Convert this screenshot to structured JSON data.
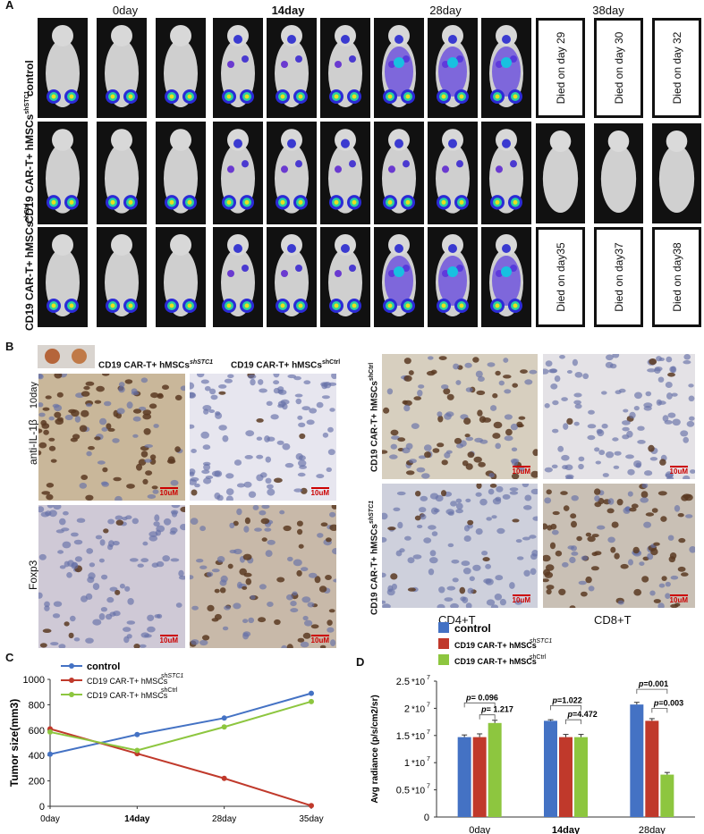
{
  "panels": {
    "a": "A",
    "b": "B",
    "c": "C",
    "d": "D"
  },
  "panel_a": {
    "days": [
      {
        "label": "0day",
        "bold": false
      },
      {
        "label": "14day",
        "bold": true
      },
      {
        "label": "28day",
        "bold": false
      },
      {
        "label": "38day",
        "bold": false
      }
    ],
    "rows": [
      {
        "label": "control",
        "sup": ""
      },
      {
        "label": "CD19 CAR-T+ hMSCs",
        "sup": "shSTC1"
      },
      {
        "label": "CD19 CAR-T+ hMSCs",
        "sup": "shCtrl"
      }
    ],
    "died": [
      [
        "Died on day 29",
        "Died on day 30",
        "Died on day 32"
      ],
      [
        "Died on day35",
        "Died on day37",
        "Died on day38"
      ]
    ]
  },
  "panel_b": {
    "col1": "CD19 CAR-T+ hMSCs",
    "col1_sup": "shSTC1",
    "col2": "CD19 CAR-T+ hMSCs",
    "col2_sup": "shCtrl",
    "row1": "anti-IL-1β",
    "row1_day": "10day",
    "row2": "Foxp3",
    "scale": "10uM",
    "right_row1": "CD19 CAR-T+ hMSCs",
    "right_row1_sup": "shCtrl",
    "right_row2": "CD19 CAR-T+ hMSCs",
    "right_row2_sup": "shSTC1",
    "right_col1": "CD4+T",
    "right_col2": "CD8+T"
  },
  "colors": {
    "control": "#4472c4",
    "shSTC1": "#c0392b",
    "shCtrl": "#8dc63f"
  },
  "chart_data": [
    {
      "type": "line",
      "ylabel": "Tumor size(mm3)",
      "x": [
        "0day",
        "14day",
        "28day",
        "35day"
      ],
      "ylim": [
        0,
        1000
      ],
      "yticks": [
        "0",
        "200",
        "400",
        "600",
        "800",
        "1000"
      ],
      "series": [
        {
          "name": "control",
          "sup": "",
          "values": [
            410,
            565,
            695,
            890
          ]
        },
        {
          "name": "CD19 CAR-T+ hMSCs",
          "sup": "shSTC1",
          "values": [
            610,
            415,
            220,
            5
          ]
        },
        {
          "name": "CD19 CAR-T+ hMSCs",
          "sup": "shCtrl",
          "values": [
            585,
            440,
            625,
            825
          ]
        }
      ]
    },
    {
      "type": "bar",
      "ylabel": "Avg radiance (p/s/cm2/sr)",
      "categories": [
        "0day",
        "14day",
        "28day"
      ],
      "ylim": [
        0,
        2.5
      ],
      "yticks": [
        "0",
        "0.5",
        "1",
        "1.5",
        "2",
        "2.5"
      ],
      "exponent": "*10",
      "exponent_power": "7",
      "series": [
        {
          "name": "control",
          "sup": "",
          "values": [
            1.47,
            1.77,
            2.07
          ]
        },
        {
          "name": "CD19 CAR-T+ hMSCs",
          "sup": "shSTC1",
          "values": [
            1.47,
            1.47,
            1.77
          ]
        },
        {
          "name": "CD19 CAR-T+ hMSCs",
          "sup": "shCtrl",
          "values": [
            1.73,
            1.47,
            0.78
          ]
        }
      ],
      "errors": [
        [
          0.04,
          0.02,
          0.04
        ],
        [
          0.06,
          0.05,
          0.04
        ],
        [
          0.05,
          0.05,
          0.04
        ]
      ],
      "annotations": [
        {
          "p": "p",
          "text": "= 0.096"
        },
        {
          "p": "p",
          "text": "= 1.217"
        },
        {
          "p": "p",
          "text": "=1.022"
        },
        {
          "p": "p",
          "text": "=4.472"
        },
        {
          "p": "p",
          "text": "=0.001"
        },
        {
          "p": "p",
          "text": "=0.003"
        }
      ]
    }
  ]
}
